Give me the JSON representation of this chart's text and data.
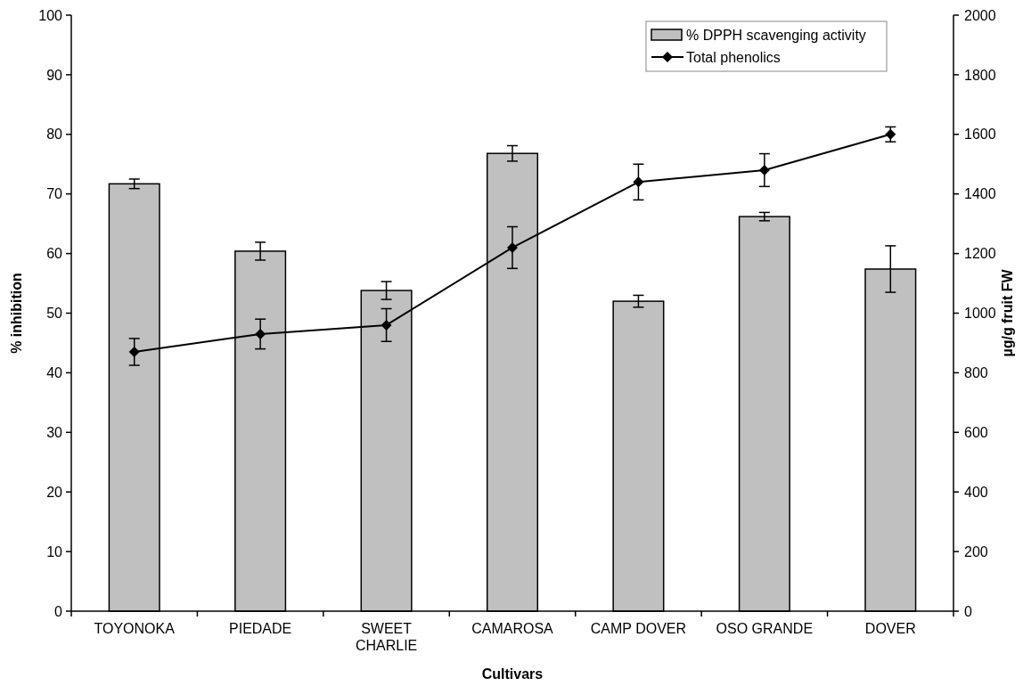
{
  "chart_data": {
    "type": "bar",
    "xlabel": "Cultivars",
    "ylabel": "% inhibition",
    "y2label": "µg/g fruit FW",
    "categories": [
      "TOYONOKA",
      "PIEDADE",
      "SWEET CHARLIE",
      "CAMAROSA",
      "CAMP DOVER",
      "OSO GRANDE",
      "DOVER"
    ],
    "series": [
      {
        "name": "% DPPH scavenging activity",
        "color": "#c0c0c0",
        "values": [
          71.7,
          60.4,
          53.8,
          76.8,
          52.0,
          66.2,
          57.4
        ],
        "errors": [
          0.8,
          1.5,
          1.5,
          1.3,
          1.0,
          0.7,
          3.9
        ]
      },
      {
        "name": "Total phenolics",
        "type": "line",
        "axis": "y2",
        "color": "#000000",
        "marker": "diamond",
        "values": [
          870,
          930,
          960,
          1220,
          1440,
          1480,
          1600
        ],
        "errors": [
          45,
          50,
          55,
          70,
          60,
          55,
          25
        ]
      }
    ],
    "ylim": [
      0,
      100
    ],
    "yticks": [
      0,
      10,
      20,
      30,
      40,
      50,
      60,
      70,
      80,
      90,
      100
    ],
    "y2lim": [
      0,
      2000
    ],
    "y2ticks": [
      0,
      200,
      400,
      600,
      800,
      1000,
      1200,
      1400,
      1600,
      1800,
      2000
    ],
    "legend": "top right",
    "grid": false
  }
}
